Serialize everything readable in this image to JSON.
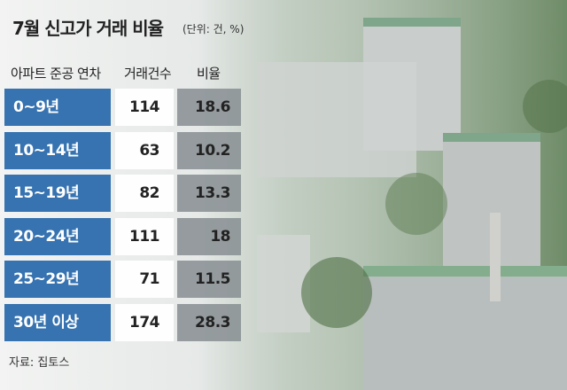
{
  "header": {
    "title": "7월 신고가 거래 비율",
    "unit": "(단위: 건, %)"
  },
  "table": {
    "headers": [
      "아파트 준공 연차",
      "거래건수",
      "비율"
    ],
    "rows": [
      [
        "0~9년",
        114,
        18.6
      ],
      [
        "10~14년",
        63,
        10.2
      ],
      [
        "15~19년",
        82,
        13.3
      ],
      [
        "20~24년",
        111,
        18
      ],
      [
        "25~29년",
        71,
        11.5
      ],
      [
        "30년 이상",
        174,
        28.3
      ]
    ]
  },
  "source": "자료: 집토스"
}
